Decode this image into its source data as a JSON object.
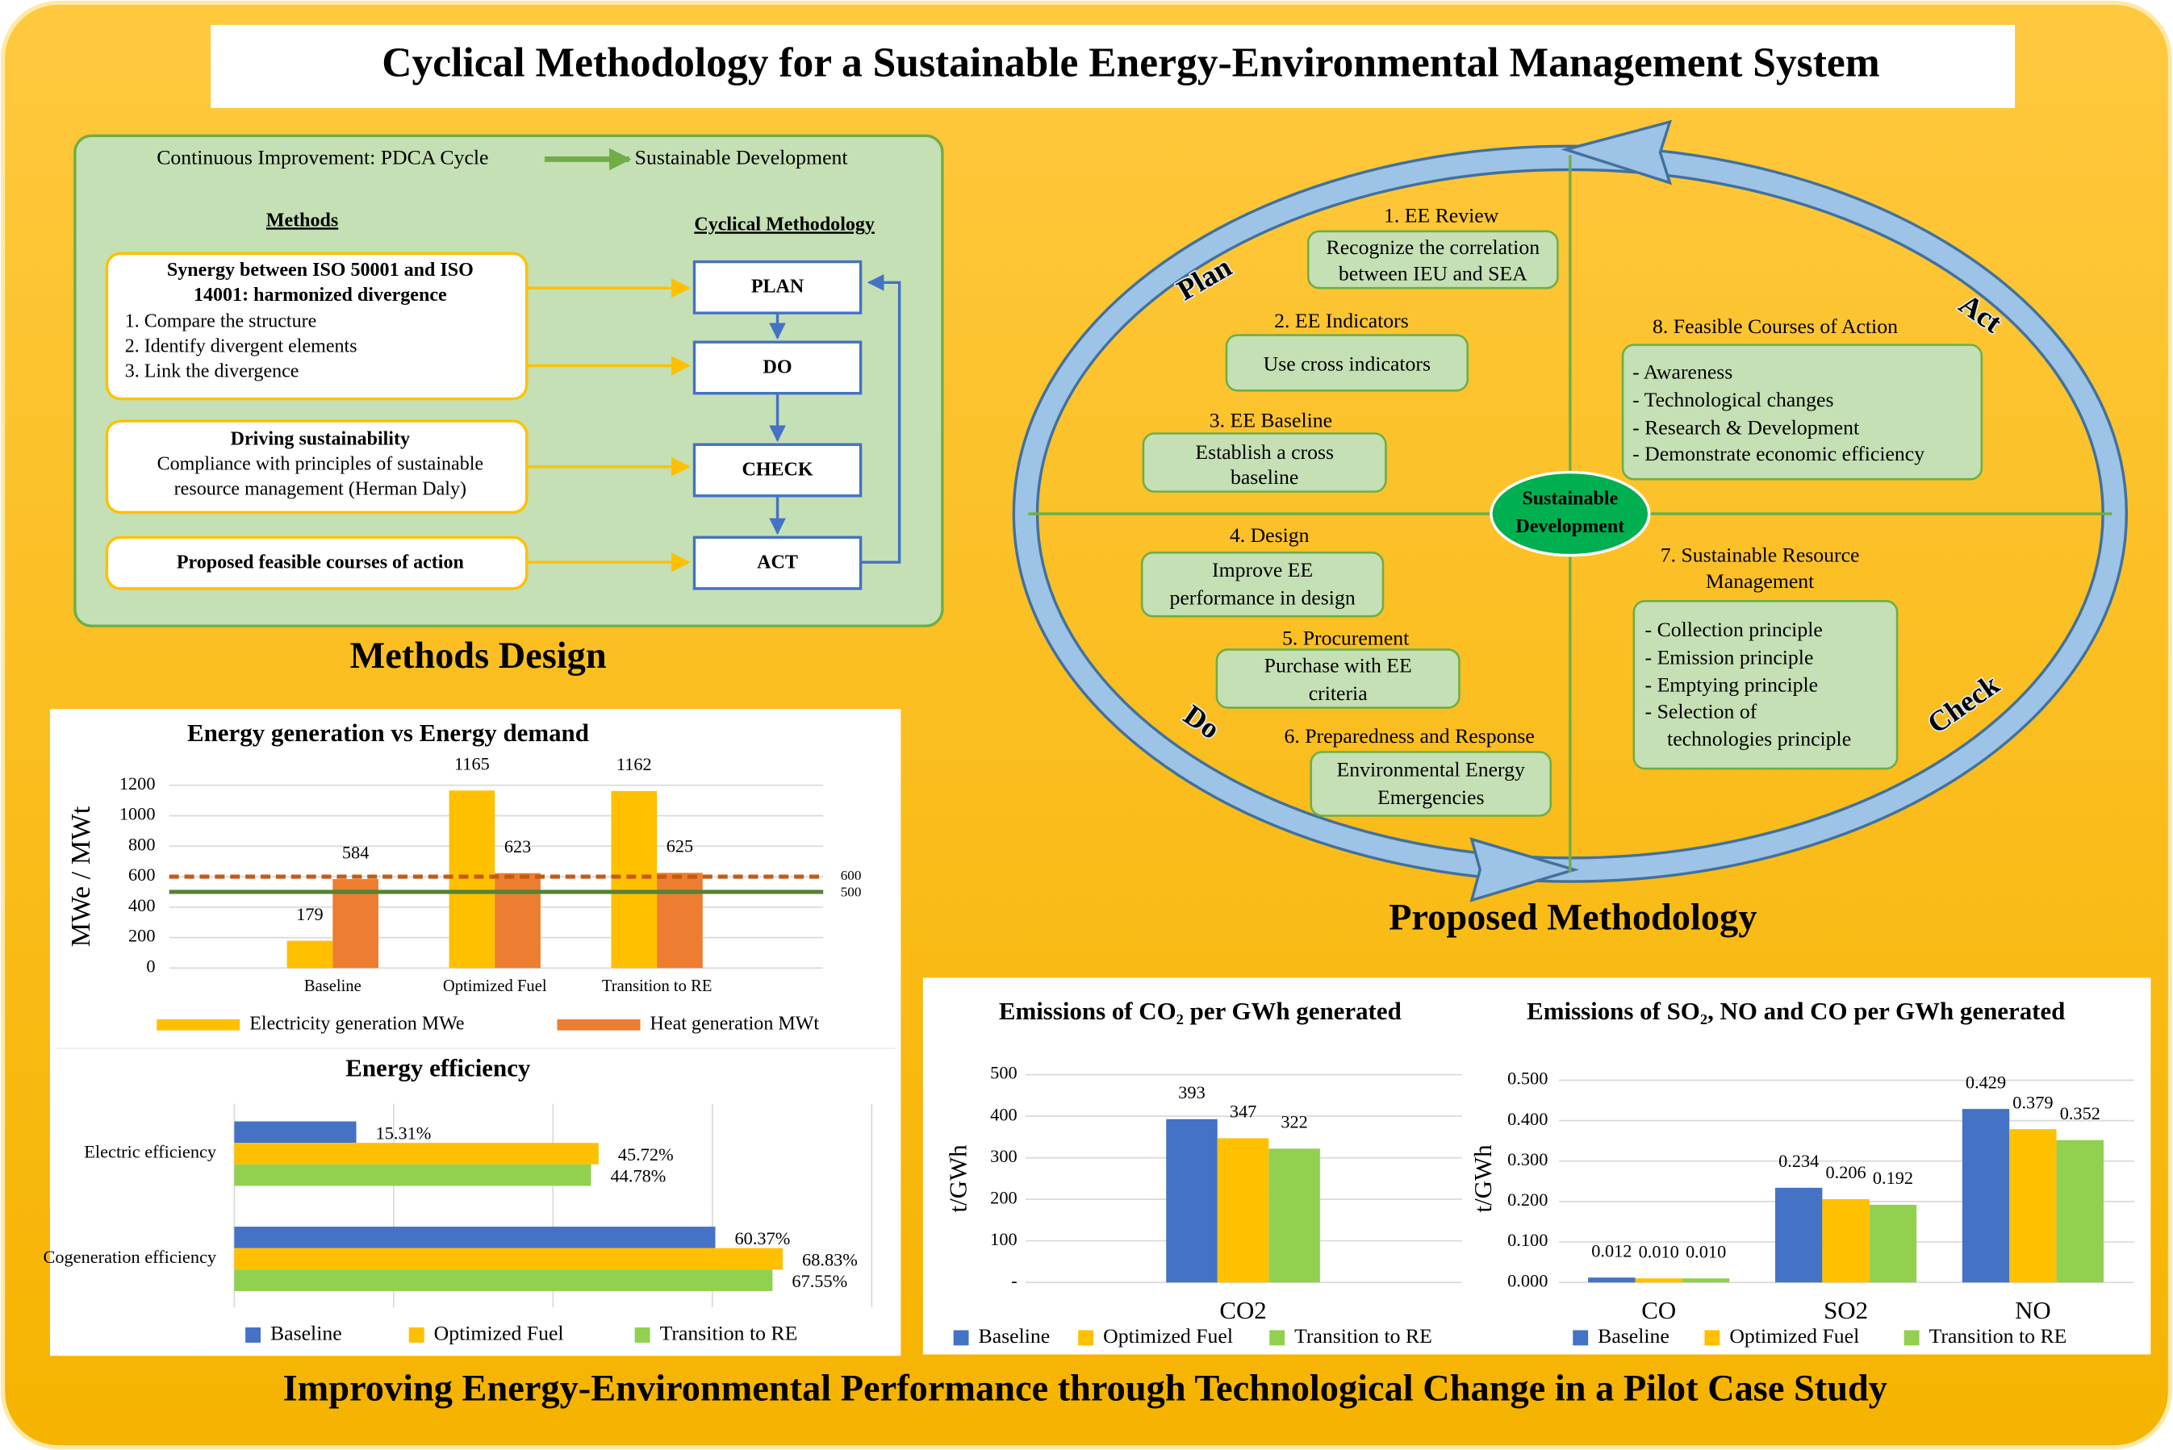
{
  "title": "Cyclical Methodology for a Sustainable Energy-Environmental Management System",
  "methods_design": {
    "header": {
      "left": "Continuous Improvement: PDCA Cycle",
      "right": "Sustainable Development"
    },
    "methods_heading": "Methods",
    "cycle_heading": "Cyclical Methodology",
    "methods": [
      {
        "title": [
          "Synergy between ISO 50001 and ISO",
          "14001: harmonized divergence"
        ],
        "lines": [
          "1. Compare the structure",
          "2. Identify divergent elements",
          "3. Link the divergence"
        ]
      },
      {
        "title": [
          "Driving sustainability"
        ],
        "lines": [
          "Compliance with principles of sustainable",
          "resource management (Herman Daly)"
        ]
      },
      {
        "title": [
          "Proposed feasible courses of action"
        ],
        "lines": []
      }
    ],
    "cycle": [
      "PLAN",
      "DO",
      "CHECK",
      "ACT"
    ],
    "caption": "Methods Design"
  },
  "methodology": {
    "quadrants": [
      "Plan",
      "Act",
      "Do",
      "Check"
    ],
    "center": [
      "Sustainable",
      "Development"
    ],
    "stages": [
      {
        "title": [
          "1. EE Review"
        ],
        "lines": [
          "Recognize the correlation",
          "between IEU and SEA"
        ]
      },
      {
        "title": [
          "2. EE Indicators"
        ],
        "lines": [
          "Use cross indicators"
        ]
      },
      {
        "title": [
          "3. EE Baseline"
        ],
        "lines": [
          "Establish a cross",
          "baseline"
        ]
      },
      {
        "title": [
          "4. Design"
        ],
        "lines": [
          "Improve EE",
          "performance in design"
        ]
      },
      {
        "title": [
          "5. Procurement"
        ],
        "lines": [
          "Purchase with EE",
          "criteria"
        ]
      },
      {
        "title": [
          "6. Preparedness and Response"
        ],
        "lines": [
          "Environmental Energy",
          "Emergencies"
        ]
      },
      {
        "title": [
          "7. Sustainable Resource",
          "Management"
        ],
        "lines": [
          "- Collection principle",
          "- Emission principle",
          "- Emptying principle",
          "- Selection of",
          "technologies principle"
        ]
      },
      {
        "title": [
          "8. Feasible Courses of Action"
        ],
        "lines": [
          "- Awareness",
          "- Technological changes",
          "- Research & Development",
          "- Demonstrate economic efficiency"
        ]
      }
    ],
    "caption": "Proposed Methodology"
  },
  "footer": "Improving Energy-Environmental Performance through Technological Change in a Pilot Case Study",
  "chart_data": [
    {
      "type": "bar",
      "title": "Energy generation vs Energy demand",
      "y_label": "MWe / MWt",
      "categories": [
        "Baseline",
        "Optimized Fuel",
        "Transition to RE"
      ],
      "series": [
        {
          "name": "Electricity generation MWe",
          "color": "#ffc000",
          "values": [
            179,
            1165,
            1162
          ]
        },
        {
          "name": "Heat generation MWt",
          "color": "#ed7d31",
          "values": [
            584,
            623,
            625
          ]
        }
      ],
      "reference_lines": [
        {
          "value": 600,
          "color": "#c55a11",
          "style": "dashed"
        },
        {
          "value": 500,
          "color": "#548235",
          "style": "solid"
        }
      ],
      "ylim": [
        0,
        1200
      ],
      "yticks": [
        0,
        200,
        400,
        600,
        800,
        1000,
        1200
      ],
      "grid": true,
      "legend": "bottom"
    },
    {
      "type": "barh",
      "title": "Energy efficiency",
      "categories": [
        "Electric efficiency",
        "Cogeneration efficiency"
      ],
      "series": [
        {
          "name": "Baseline",
          "color": "#4472c4",
          "values": [
            15.31,
            60.37
          ],
          "value_labels": [
            "15.31%",
            "60.37%"
          ]
        },
        {
          "name": "Optimized Fuel",
          "color": "#ffc000",
          "values": [
            45.72,
            68.83
          ],
          "value_labels": [
            "45.72%",
            "68.83%"
          ]
        },
        {
          "name": "Transition to RE",
          "color": "#92d050",
          "values": [
            44.78,
            67.55
          ],
          "value_labels": [
            "44.78%",
            "67.55%"
          ]
        }
      ],
      "xlim": [
        0,
        80
      ],
      "xticks": [
        0,
        20,
        40,
        60,
        80
      ],
      "xtick_labels": false,
      "grid": true,
      "legend": "bottom"
    },
    {
      "type": "bar",
      "title": "Emissions of CO₂ per GWh generated",
      "y_label": "t/GWh",
      "categories": [
        "CO2"
      ],
      "series": [
        {
          "name": "Baseline",
          "color": "#4472c4",
          "values": [
            393
          ]
        },
        {
          "name": "Optimized Fuel",
          "color": "#ffc000",
          "values": [
            347
          ]
        },
        {
          "name": "Transition to RE",
          "color": "#92d050",
          "values": [
            322
          ]
        }
      ],
      "ylim": [
        0,
        500
      ],
      "yticks": [
        {
          "value": 0,
          "label": "-"
        },
        100,
        200,
        300,
        400,
        500
      ],
      "grid": true,
      "legend": "bottom"
    },
    {
      "type": "bar",
      "title": "Emissions of SO₂, NO and CO per GWh generated",
      "y_label": "t/GWh",
      "categories": [
        "CO",
        "SO2",
        "NO"
      ],
      "series": [
        {
          "name": "Baseline",
          "color": "#4472c4",
          "values": [
            0.012,
            0.234,
            0.429
          ],
          "value_labels": [
            "0.012",
            "0.234",
            "0.429"
          ]
        },
        {
          "name": "Optimized Fuel",
          "color": "#ffc000",
          "values": [
            0.01,
            0.206,
            0.379
          ],
          "value_labels": [
            "0.010",
            "0.206",
            "0.379"
          ]
        },
        {
          "name": "Transition to RE",
          "color": "#92d050",
          "values": [
            0.01,
            0.192,
            0.352
          ],
          "value_labels": [
            "0.010",
            "0.192",
            "0.352"
          ]
        }
      ],
      "ylim": [
        0,
        0.5
      ],
      "yticks": [
        {
          "value": 0,
          "label": "0.000"
        },
        {
          "value": 0.1,
          "label": "0.100"
        },
        {
          "value": 0.2,
          "label": "0.200"
        },
        {
          "value": 0.3,
          "label": "0.300"
        },
        {
          "value": 0.4,
          "label": "0.400"
        },
        {
          "value": 0.5,
          "label": "0.500"
        }
      ],
      "grid": true,
      "legend": "bottom"
    }
  ]
}
